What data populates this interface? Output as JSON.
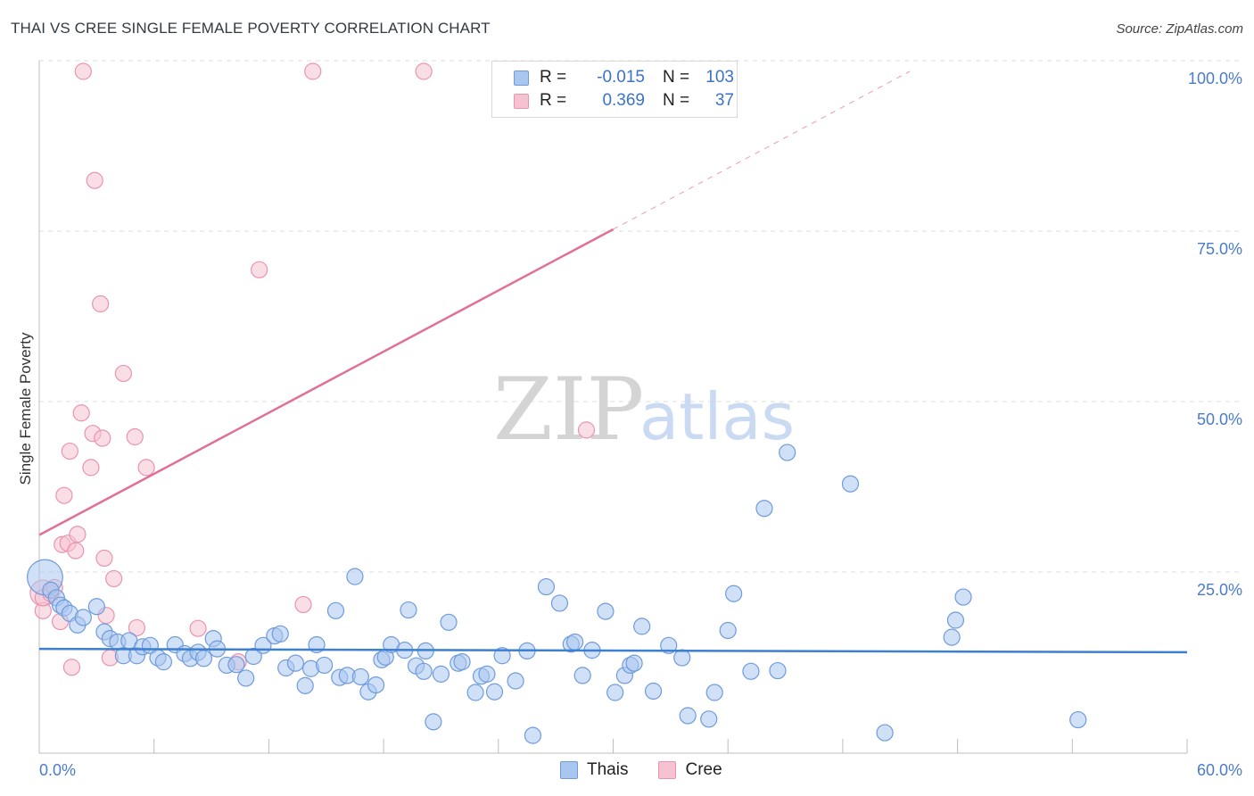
{
  "title": "THAI VS CREE SINGLE FEMALE POVERTY CORRELATION CHART",
  "source": "Source: ZipAtlas.com",
  "watermark": {
    "zip": "ZIP",
    "atlas": "atlas"
  },
  "colors": {
    "thais_fill": "#a9c6ee",
    "thais_stroke": "#6f9bdc",
    "thais_line": "#3d7fd0",
    "cree_fill": "#f6c2d2",
    "cree_stroke": "#ea93b1",
    "cree_line": "#e07098",
    "axis_label": "#4a7ccc",
    "grid": "#dddddd"
  },
  "legend": {
    "rows": [
      {
        "r_label": "R =",
        "r_value": "-0.015",
        "n_label": "N =",
        "n_value": "103"
      },
      {
        "r_label": "R =",
        "r_value": "0.369",
        "n_label": "N =",
        "n_value": "37"
      }
    ],
    "bottom": [
      "Thais",
      "Cree"
    ]
  },
  "chart_data": {
    "type": "scatter",
    "title": "THAI VS CREE SINGLE FEMALE POVERTY CORRELATION CHART",
    "xlabel": "",
    "ylabel": "Single Female Poverty",
    "xlim": [
      0,
      60
    ],
    "ylim": [
      0,
      100
    ],
    "x_tick_labels": [
      "0.0%",
      "60.0%"
    ],
    "y_ticks": [
      25,
      50,
      75,
      100
    ],
    "y_tick_labels": [
      "25.0%",
      "50.0%",
      "75.0%",
      "100.0%"
    ],
    "grid": true,
    "series": [
      {
        "name": "Thais",
        "R": -0.015,
        "N": 103,
        "trend": {
          "x": [
            0,
            60
          ],
          "y": [
            15.3,
            14.8
          ],
          "solid_until": 60
        },
        "points": [
          [
            0.3,
            25.8,
            2.2
          ],
          [
            0.6,
            23.9,
            1
          ],
          [
            0.9,
            22.8,
            1
          ],
          [
            1.1,
            21.7,
            1
          ],
          [
            1.3,
            21.3,
            1
          ],
          [
            1.6,
            20.5,
            1
          ],
          [
            2.0,
            18.8,
            1
          ],
          [
            2.3,
            19.9,
            1
          ],
          [
            3.0,
            21.5,
            1
          ],
          [
            3.4,
            17.8,
            1
          ],
          [
            3.7,
            16.8,
            1
          ],
          [
            4.1,
            16.3,
            1
          ],
          [
            4.4,
            14.3,
            1
          ],
          [
            4.7,
            16.5,
            1
          ],
          [
            5.1,
            14.3,
            1
          ],
          [
            5.4,
            15.6,
            1
          ],
          [
            5.8,
            15.8,
            1
          ],
          [
            6.2,
            14.0,
            1
          ],
          [
            6.5,
            13.4,
            1
          ],
          [
            7.1,
            15.9,
            1
          ],
          [
            7.6,
            14.6,
            1
          ],
          [
            7.9,
            13.9,
            1
          ],
          [
            8.3,
            14.8,
            1
          ],
          [
            8.6,
            13.9,
            1
          ],
          [
            9.1,
            16.8,
            1
          ],
          [
            9.3,
            15.3,
            1
          ],
          [
            9.8,
            12.9,
            1
          ],
          [
            10.3,
            13.0,
            1
          ],
          [
            10.8,
            11.0,
            1
          ],
          [
            11.2,
            14.2,
            1
          ],
          [
            11.7,
            15.8,
            1
          ],
          [
            12.3,
            17.2,
            1
          ],
          [
            12.6,
            17.5,
            1
          ],
          [
            12.9,
            12.5,
            1
          ],
          [
            13.4,
            13.2,
            1
          ],
          [
            13.9,
            9.9,
            1
          ],
          [
            14.2,
            12.4,
            1
          ],
          [
            14.5,
            15.9,
            1
          ],
          [
            14.9,
            12.9,
            1
          ],
          [
            15.5,
            20.9,
            1
          ],
          [
            15.7,
            11.1,
            1
          ],
          [
            16.1,
            11.4,
            1
          ],
          [
            16.5,
            25.9,
            1
          ],
          [
            16.8,
            11.2,
            1
          ],
          [
            17.2,
            9.0,
            1
          ],
          [
            17.6,
            10.0,
            1
          ],
          [
            17.9,
            13.7,
            1
          ],
          [
            18.1,
            14.1,
            1
          ],
          [
            18.4,
            15.9,
            1
          ],
          [
            19.1,
            15.1,
            1
          ],
          [
            19.3,
            21.0,
            1
          ],
          [
            19.7,
            12.8,
            1
          ],
          [
            20.1,
            12.0,
            1
          ],
          [
            20.2,
            15.0,
            1
          ],
          [
            20.6,
            4.6,
            1
          ],
          [
            21.0,
            11.6,
            1
          ],
          [
            21.4,
            19.2,
            1
          ],
          [
            21.9,
            13.2,
            1
          ],
          [
            22.1,
            13.4,
            1
          ],
          [
            22.8,
            8.9,
            1
          ],
          [
            23.1,
            11.3,
            1
          ],
          [
            23.4,
            11.6,
            1
          ],
          [
            23.8,
            9.0,
            1
          ],
          [
            24.2,
            14.3,
            1
          ],
          [
            24.9,
            10.6,
            1
          ],
          [
            25.5,
            15.0,
            1
          ],
          [
            25.8,
            2.6,
            1
          ],
          [
            26.5,
            24.4,
            1
          ],
          [
            27.2,
            22.0,
            1
          ],
          [
            27.8,
            16.0,
            1
          ],
          [
            28.0,
            16.3,
            1
          ],
          [
            28.4,
            11.4,
            1
          ],
          [
            28.9,
            15.1,
            1
          ],
          [
            29.6,
            20.8,
            1
          ],
          [
            30.1,
            8.9,
            1
          ],
          [
            30.6,
            11.4,
            1
          ],
          [
            30.9,
            12.9,
            1
          ],
          [
            31.1,
            13.2,
            1
          ],
          [
            31.5,
            18.6,
            1
          ],
          [
            32.1,
            9.1,
            1
          ],
          [
            32.9,
            15.8,
            1
          ],
          [
            33.6,
            14.0,
            1
          ],
          [
            33.9,
            5.5,
            1
          ],
          [
            35.0,
            5.0,
            1
          ],
          [
            35.3,
            8.9,
            1
          ],
          [
            36.0,
            18.0,
            1
          ],
          [
            36.3,
            23.4,
            1
          ],
          [
            37.2,
            12.0,
            1
          ],
          [
            37.9,
            35.9,
            1
          ],
          [
            38.6,
            12.1,
            1
          ],
          [
            39.1,
            44.1,
            1
          ],
          [
            42.4,
            39.5,
            1
          ],
          [
            44.2,
            3.0,
            1
          ],
          [
            47.7,
            17.0,
            1
          ],
          [
            47.9,
            19.5,
            1
          ],
          [
            48.3,
            22.9,
            1
          ],
          [
            54.3,
            4.9,
            1
          ]
        ]
      },
      {
        "name": "Cree",
        "R": 0.369,
        "N": 37,
        "trend": {
          "x": [
            0,
            45.5
          ],
          "y": [
            32.0,
            100.0
          ],
          "solid_until": 30.0
        },
        "points": [
          [
            0.2,
            23.5,
            1.6
          ],
          [
            0.2,
            20.9,
            1
          ],
          [
            0.2,
            22.8,
            1
          ],
          [
            0.6,
            23.4,
            1
          ],
          [
            0.8,
            24.3,
            1
          ],
          [
            1.1,
            19.3,
            1
          ],
          [
            1.2,
            30.6,
            1
          ],
          [
            1.3,
            37.8,
            1
          ],
          [
            1.5,
            30.8,
            1
          ],
          [
            1.6,
            44.3,
            1
          ],
          [
            1.7,
            12.6,
            1
          ],
          [
            1.9,
            29.7,
            1
          ],
          [
            2.0,
            32.1,
            1
          ],
          [
            2.2,
            49.9,
            1
          ],
          [
            2.3,
            100.0,
            1
          ],
          [
            2.7,
            41.9,
            1
          ],
          [
            2.8,
            46.9,
            1
          ],
          [
            2.9,
            84.0,
            1
          ],
          [
            3.2,
            65.9,
            1
          ],
          [
            3.3,
            46.2,
            1
          ],
          [
            3.4,
            28.6,
            1
          ],
          [
            3.5,
            20.2,
            1
          ],
          [
            3.7,
            14.0,
            1
          ],
          [
            3.9,
            25.6,
            1
          ],
          [
            4.4,
            55.7,
            1
          ],
          [
            5.0,
            46.4,
            1
          ],
          [
            5.1,
            18.4,
            1
          ],
          [
            5.6,
            41.9,
            1
          ],
          [
            8.3,
            18.3,
            1
          ],
          [
            10.4,
            13.4,
            1
          ],
          [
            11.5,
            70.9,
            1
          ],
          [
            13.8,
            21.8,
            1
          ],
          [
            14.3,
            100.0,
            1
          ],
          [
            20.1,
            100.0,
            1
          ],
          [
            28.6,
            47.4,
            1
          ]
        ]
      }
    ]
  }
}
